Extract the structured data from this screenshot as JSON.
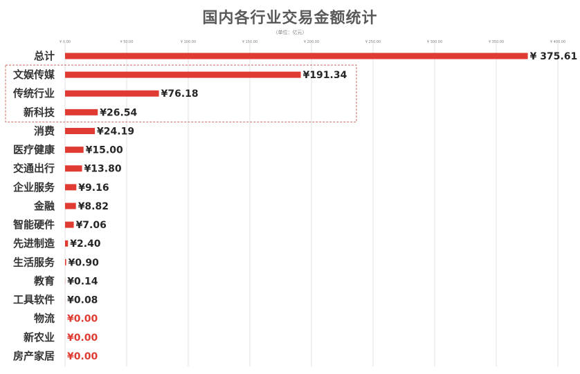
{
  "chart_data": {
    "type": "bar",
    "orientation": "horizontal",
    "title": "国内各行业交易金额统计",
    "subtitle": "（单位：亿元）",
    "categories": [
      "总计",
      "文娱传媒",
      "传统行业",
      "新科技",
      "消费",
      "医疗健康",
      "交通出行",
      "企业服务",
      "金融",
      "智能硬件",
      "先进制造",
      "生活服务",
      "教育",
      "工具软件",
      "物流",
      "新农业",
      "房产家居"
    ],
    "values": [
      375.61,
      191.34,
      76.18,
      26.54,
      24.19,
      15.0,
      13.8,
      9.16,
      8.82,
      7.06,
      2.4,
      0.9,
      0.14,
      0.08,
      0.0,
      0.0,
      0.0
    ],
    "value_labels": [
      "¥ 375.61",
      "¥191.34",
      "¥76.18",
      "¥26.54",
      "¥24.19",
      "¥15.00",
      "¥13.80",
      "¥9.16",
      "¥8.82",
      "¥7.06",
      "¥2.40",
      "¥0.90",
      "¥0.14",
      "¥0.08",
      "¥0.00",
      "¥0.00",
      "¥0.00"
    ],
    "xlim": [
      0,
      400
    ],
    "x_ticks": [
      0,
      50,
      100,
      150,
      200,
      250,
      300,
      350,
      400
    ],
    "x_tick_labels": [
      "¥ 0.00",
      "¥ 50.00",
      "¥ 100.00",
      "¥ 150.00",
      "¥ 200.00",
      "¥ 250.00",
      "¥ 300.00",
      "¥ 350.00",
      "¥ 400.00"
    ],
    "grid": "vertical",
    "highlight_group": [
      "文娱传媒",
      "传统行业",
      "新科技"
    ],
    "colors": {
      "bar": "#e03b32",
      "zero_label": "#e03b32",
      "grid": "#d9d9d9",
      "highlight_box": "#c9665f"
    }
  }
}
